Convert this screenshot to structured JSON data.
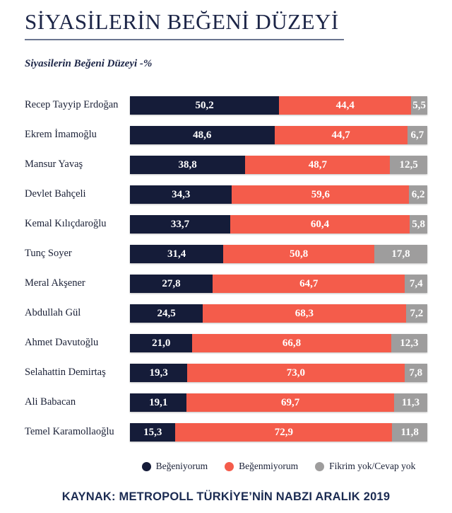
{
  "header": {
    "title": "SİYASİLERİN BEĞENİ DÜZEYİ",
    "subtitle": "Siyasilerin Beğeni Düzeyi -%"
  },
  "chart_data": {
    "type": "bar",
    "orientation": "horizontal",
    "stacked": true,
    "xlim": [
      0,
      100
    ],
    "grid": false,
    "legend_position": "bottom",
    "value_label_format": "comma-decimal",
    "categories": [
      "Recep Tayyip Erdoğan",
      "Ekrem İmamoğlu",
      "Mansur Yavaş",
      "Devlet Bahçeli",
      "Kemal Kılıçdaroğlu",
      "Tunç Soyer",
      "Meral Akşener",
      "Abdullah Gül",
      "Ahmet Davutoğlu",
      "Selahattin Demirtaş",
      "Ali Babacan",
      "Temel Karamollaoğlu"
    ],
    "series": [
      {
        "name": "Beğeniyorum",
        "key": "approve",
        "color": "#151c39",
        "values": [
          50.2,
          48.6,
          38.8,
          34.3,
          33.7,
          31.4,
          27.8,
          24.5,
          21.0,
          19.3,
          19.1,
          15.3
        ]
      },
      {
        "name": "Beğenmiyorum",
        "key": "disapprove",
        "color": "#f45c4b",
        "values": [
          44.4,
          44.7,
          48.7,
          59.6,
          60.4,
          50.8,
          64.7,
          68.3,
          66.8,
          73.0,
          69.7,
          72.9
        ]
      },
      {
        "name": "Fikrim yok/Cevap yok",
        "key": "no-opinion",
        "color": "#9e9d9d",
        "values": [
          5.5,
          6.7,
          12.5,
          6.2,
          5.8,
          17.8,
          7.4,
          7.2,
          12.3,
          7.8,
          11.3,
          11.8
        ]
      }
    ]
  },
  "footer": {
    "source": "KAYNAK: METROPOLL TÜRKİYE’NİN NABZI ARALIK 2019"
  },
  "colors": {
    "title": "#1c2547",
    "rule": "#6b7690",
    "label": "#1a2036",
    "background": "#ffffff"
  }
}
